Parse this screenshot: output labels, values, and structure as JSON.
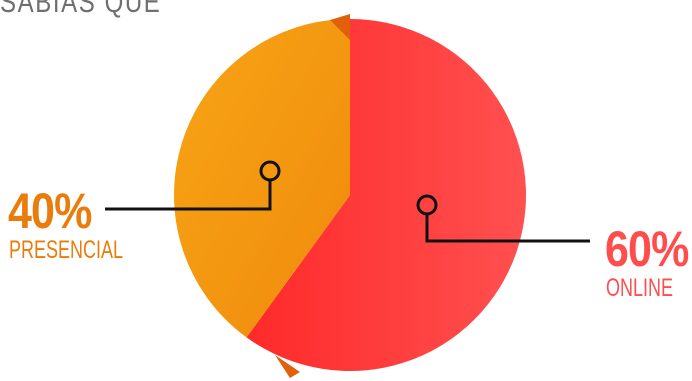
{
  "colors": {
    "presencial": "#f39a12",
    "presencial_dark": "#e0600b",
    "online": "#ff3838",
    "online_light": "#ff4d4d",
    "leader": "#111111",
    "title": "#6f6f6f"
  },
  "chart_data": {
    "type": "pie",
    "title": "SABÍAS QUE",
    "slices": [
      {
        "label": "PRESENCIAL",
        "percent_label": "40%",
        "value": 40,
        "color": "#f39a12"
      },
      {
        "label": "ONLINE",
        "percent_label": "60%",
        "value": 60,
        "color": "#ff3838"
      }
    ],
    "legend": "none",
    "grid": false
  }
}
